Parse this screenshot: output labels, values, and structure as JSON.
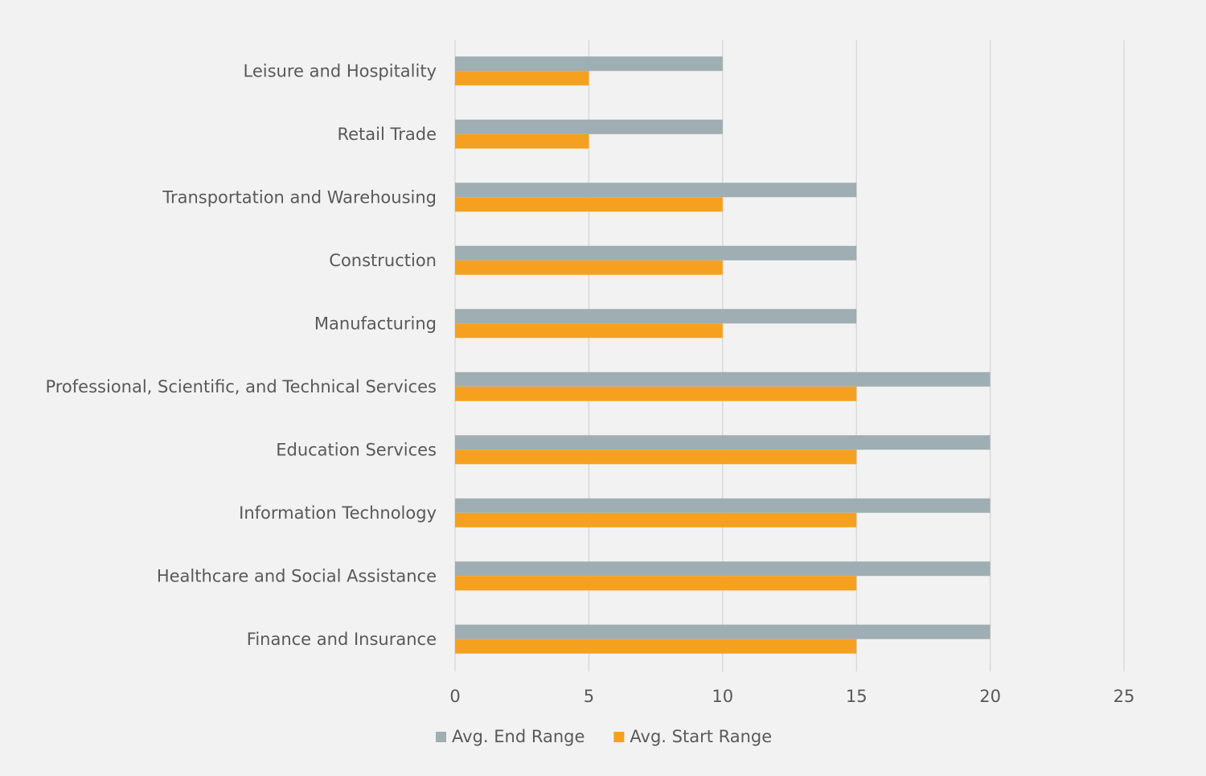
{
  "chart_data": {
    "type": "bar",
    "orientation": "horizontal",
    "categories": [
      "Leisure and Hospitality",
      "Retail Trade",
      "Transportation and Warehousing",
      "Construction",
      "Manufacturing",
      "Professional, Scientific, and Technical Services",
      "Education Services",
      "Information Technology",
      "Healthcare and Social Assistance",
      "Finance and Insurance"
    ],
    "series": [
      {
        "name": "Avg. End Range",
        "color": "#9eaeb3",
        "values": [
          10,
          10,
          15,
          15,
          15,
          20,
          20,
          20,
          20,
          20
        ]
      },
      {
        "name": "Avg. Start Range",
        "color": "#f5a11f",
        "values": [
          5,
          5,
          10,
          10,
          10,
          15,
          15,
          15,
          15,
          15
        ]
      }
    ],
    "xlim": [
      0,
      25
    ],
    "xticks": [
      0,
      5,
      10,
      15,
      20,
      25
    ],
    "grid": true,
    "legend": "bottom"
  }
}
